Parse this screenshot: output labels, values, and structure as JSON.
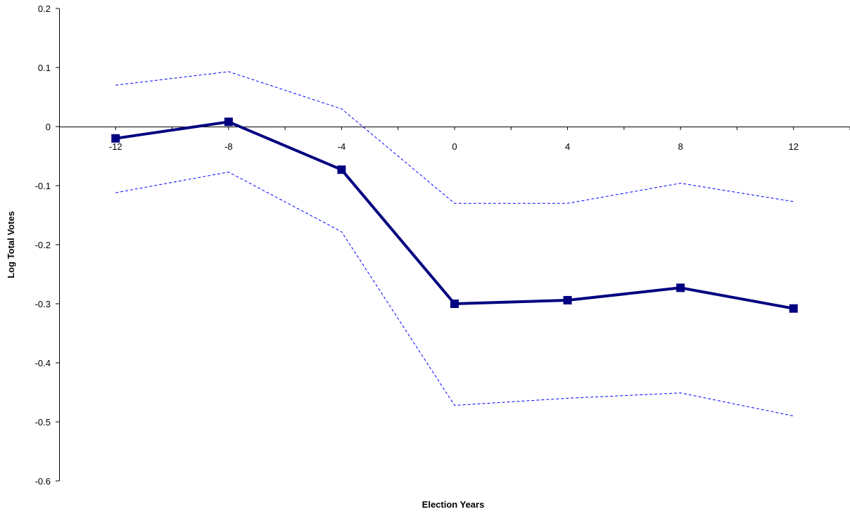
{
  "chart_data": {
    "type": "line",
    "title": "",
    "xlabel": "Election Years",
    "ylabel": "Log Total Votes",
    "categories": [
      "-12",
      "-8",
      "-4",
      "0",
      "4",
      "8",
      "12"
    ],
    "x": [
      -12,
      -8,
      -4,
      0,
      4,
      8,
      12
    ],
    "ylim": [
      -0.6,
      0.2
    ],
    "yticks": [
      0.2,
      0.1,
      0,
      -0.1,
      -0.2,
      -0.3,
      -0.4,
      -0.5,
      -0.6
    ],
    "ytick_labels": [
      "0.2",
      "0.1",
      "0",
      "-0.1",
      "-0.2",
      "-0.3",
      "-0.4",
      "-0.5",
      "-0.6"
    ],
    "grid": false,
    "legend": "none",
    "series": [
      {
        "role": "estimate",
        "values": [
          -0.02,
          0.008,
          -0.073,
          -0.3,
          -0.294,
          -0.273,
          -0.308
        ],
        "color": "#000080",
        "marker": "square",
        "line_style": "solid"
      },
      {
        "role": "upper-bound",
        "values": [
          0.07,
          0.093,
          0.03,
          -0.13,
          -0.13,
          -0.096,
          -0.127
        ],
        "color": "#0000ff",
        "marker": "none",
        "line_style": "dashed"
      },
      {
        "role": "lower-bound",
        "values": [
          -0.112,
          -0.077,
          -0.178,
          -0.472,
          -0.46,
          -0.451,
          -0.49
        ],
        "color": "#0000ff",
        "marker": "none",
        "line_style": "dashed"
      }
    ]
  }
}
